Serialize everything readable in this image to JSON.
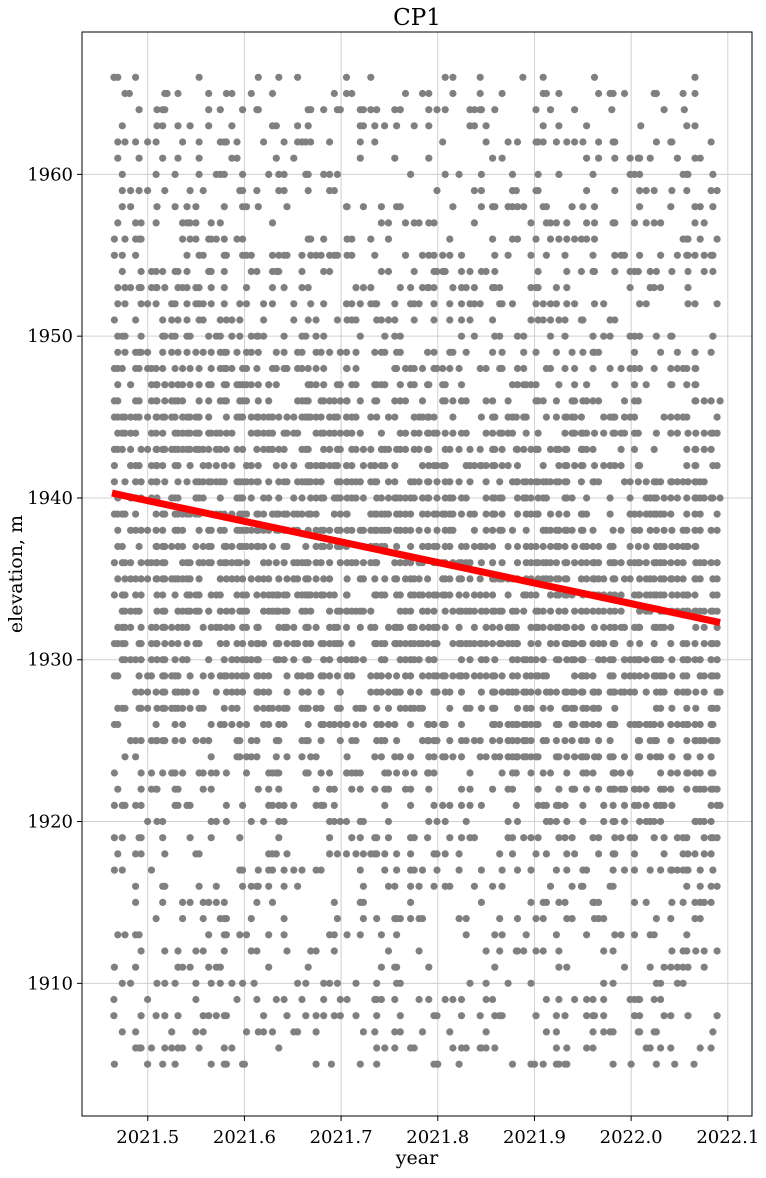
{
  "chart_data": {
    "type": "scatter",
    "title": "CP1",
    "xlabel": "year",
    "ylabel": "elevation, m",
    "xlim": [
      2021.432,
      2022.125
    ],
    "ylim": [
      1901.8,
      1968.8
    ],
    "xticks": [
      2021.5,
      2021.6,
      2021.7,
      2021.8,
      2021.9,
      2022.0,
      2022.1
    ],
    "xtick_labels": [
      "2021.5",
      "2021.6",
      "2021.7",
      "2021.8",
      "2021.9",
      "2022.0",
      "2022.1"
    ],
    "yticks": [
      1910,
      1920,
      1930,
      1940,
      1950,
      1960
    ],
    "ytick_labels": [
      "1910",
      "1920",
      "1930",
      "1940",
      "1950",
      "1960"
    ],
    "grid": true,
    "series": [
      {
        "kind": "points",
        "color": "#808080",
        "x_range": [
          2021.463,
          2022.092
        ],
        "y_range": [
          1905,
          1966
        ],
        "sample_points": [
          [
            2021.465,
            1966
          ],
          [
            2021.481,
            1965
          ],
          [
            2021.52,
            1965
          ],
          [
            2021.655,
            1966
          ],
          [
            2021.888,
            1966
          ],
          [
            2021.838,
            1964
          ],
          [
            2021.98,
            1964
          ],
          [
            2022.055,
            1964
          ],
          [
            2021.745,
            1963
          ],
          [
            2022.01,
            1963
          ],
          [
            2021.465,
            1908
          ],
          [
            2021.465,
            1909
          ],
          [
            2021.61,
            1910
          ],
          [
            2021.6,
            1905
          ],
          [
            2021.69,
            1905
          ],
          [
            2021.8,
            1905
          ],
          [
            2021.9,
            1905
          ],
          [
            2022.0,
            1905
          ],
          [
            2022.045,
            1905
          ],
          [
            2022.065,
            1905
          ],
          [
            2022.092,
            1946
          ],
          [
            2022.092,
            1940
          ],
          [
            2022.092,
            1928
          ],
          [
            2022.092,
            1921
          ]
        ]
      },
      {
        "kind": "trend-line",
        "color": "#ff0000",
        "x": [
          2021.463,
          2022.092
        ],
        "y": [
          1940.3,
          1932.3
        ]
      }
    ]
  }
}
